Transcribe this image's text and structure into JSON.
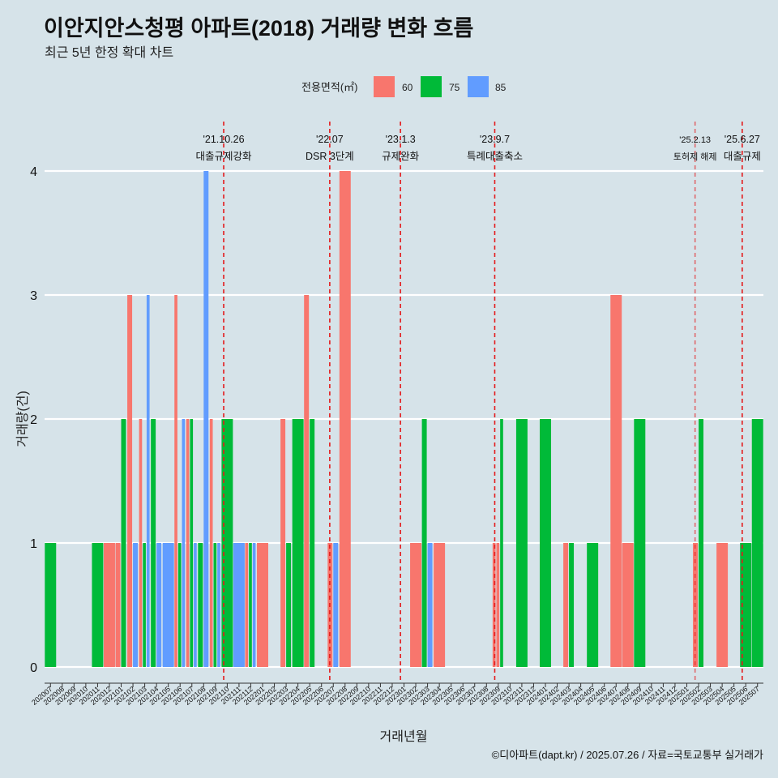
{
  "title": "이안지안스청평 아파트(2018) 거래량 변화 흐름",
  "subtitle": "최근 5년 한정 확대 차트",
  "caption": "©디아파트(dapt.kr) / 2025.07.26 / 자료=국토교통부 실거래가",
  "colors": {
    "60": "#f8766d",
    "75": "#00ba38",
    "85": "#619cff",
    "event": "#e41a1c",
    "grid": "#ffffff",
    "background": "#d6e3e9"
  },
  "chart_data": {
    "type": "bar",
    "xlabel": "거래년월",
    "ylabel": "거래량(건)",
    "ylim": [
      0,
      4
    ],
    "yticks": [
      0,
      1,
      2,
      3,
      4
    ],
    "legend": {
      "title": "전용면적(㎡)",
      "position": "top",
      "entries": [
        "60",
        "75",
        "85"
      ]
    },
    "grid": "horizontal",
    "months": [
      "202007",
      "202008",
      "202009",
      "202010",
      "202011",
      "202012",
      "202101",
      "202102",
      "202103",
      "202104",
      "202105",
      "202106",
      "202107",
      "202108",
      "202109",
      "202110",
      "202111",
      "202112",
      "202201",
      "202202",
      "202203",
      "202204",
      "202205",
      "202206",
      "202207",
      "202208",
      "202209",
      "202210",
      "202211",
      "202212",
      "202301",
      "202302",
      "202303",
      "202304",
      "202305",
      "202306",
      "202307",
      "202308",
      "202309",
      "202310",
      "202311",
      "202312",
      "202401",
      "202402",
      "202403",
      "202404",
      "202405",
      "202406",
      "202407",
      "202408",
      "202409",
      "202410",
      "202411",
      "202412",
      "202501",
      "202502",
      "202503",
      "202504",
      "202505",
      "202506",
      "202507"
    ],
    "bars": [
      {
        "month": "202007",
        "area": "75",
        "count": 1,
        "span": 1
      },
      {
        "month": "202011",
        "area": "75",
        "count": 1,
        "span": 1
      },
      {
        "month": "202012",
        "area": "60",
        "count": 1,
        "span": 1
      },
      {
        "month": "202101",
        "area": "60",
        "count": 1,
        "span": 0.45
      },
      {
        "month": "202101",
        "area": "75",
        "count": 2,
        "span": 0.45
      },
      {
        "month": "202102",
        "area": "60",
        "count": 3,
        "span": 0.3
      },
      {
        "month": "202102",
        "area": "85",
        "count": 1,
        "span": 0.3
      },
      {
        "month": "202103",
        "area": "60",
        "count": 2,
        "span": 0.3
      },
      {
        "month": "202103",
        "area": "75",
        "count": 1,
        "span": 0.3
      },
      {
        "month": "202103",
        "area": "85",
        "count": 3,
        "span": 0.3
      },
      {
        "month": "202104",
        "area": "75",
        "count": 2,
        "span": 0.45
      },
      {
        "month": "202104",
        "area": "85",
        "count": 1,
        "span": 0.45
      },
      {
        "month": "202105",
        "area": "85",
        "count": 1,
        "span": 1
      },
      {
        "month": "202106",
        "area": "60",
        "count": 3,
        "span": 0.3
      },
      {
        "month": "202106",
        "area": "75",
        "count": 1,
        "span": 0.3
      },
      {
        "month": "202106",
        "area": "85",
        "count": 2,
        "span": 0.3
      },
      {
        "month": "202107",
        "area": "60",
        "count": 2,
        "span": 0.3
      },
      {
        "month": "202107",
        "area": "75",
        "count": 2,
        "span": 0.3
      },
      {
        "month": "202107",
        "area": "85",
        "count": 1,
        "span": 0.3
      },
      {
        "month": "202108",
        "area": "75",
        "count": 1,
        "span": 0.45
      },
      {
        "month": "202108",
        "area": "85",
        "count": 4,
        "span": 0.45
      },
      {
        "month": "202109",
        "area": "60",
        "count": 2,
        "span": 0.3
      },
      {
        "month": "202109",
        "area": "75",
        "count": 1,
        "span": 0.3
      },
      {
        "month": "202109",
        "area": "85",
        "count": 1,
        "span": 0.3
      },
      {
        "month": "202110",
        "area": "75",
        "count": 2,
        "span": 1
      },
      {
        "month": "202111",
        "area": "85",
        "count": 1,
        "span": 1
      },
      {
        "month": "202112",
        "area": "60",
        "count": 1,
        "span": 0.3
      },
      {
        "month": "202112",
        "area": "75",
        "count": 1,
        "span": 0.3
      },
      {
        "month": "202112",
        "area": "85",
        "count": 1,
        "span": 0.3
      },
      {
        "month": "202201",
        "area": "60",
        "count": 1,
        "span": 1
      },
      {
        "month": "202203",
        "area": "60",
        "count": 2,
        "span": 0.45
      },
      {
        "month": "202203",
        "area": "75",
        "count": 1,
        "span": 0.45
      },
      {
        "month": "202204",
        "area": "75",
        "count": 2,
        "span": 1
      },
      {
        "month": "202205",
        "area": "60",
        "count": 3,
        "span": 0.45
      },
      {
        "month": "202205",
        "area": "75",
        "count": 2,
        "span": 0.45
      },
      {
        "month": "202207",
        "area": "60",
        "count": 1,
        "span": 0.45
      },
      {
        "month": "202207",
        "area": "85",
        "count": 1,
        "span": 0.45
      },
      {
        "month": "202208",
        "area": "60",
        "count": 4,
        "span": 1
      },
      {
        "month": "202302",
        "area": "60",
        "count": 1,
        "span": 1
      },
      {
        "month": "202303",
        "area": "75",
        "count": 2,
        "span": 0.45
      },
      {
        "month": "202303",
        "area": "85",
        "count": 1,
        "span": 0.45
      },
      {
        "month": "202304",
        "area": "60",
        "count": 1,
        "span": 1
      },
      {
        "month": "202309",
        "area": "60",
        "count": 1,
        "span": 0.3
      },
      {
        "month": "202309",
        "area": "60",
        "count": 1,
        "span": 0.3
      },
      {
        "month": "202309",
        "area": "75",
        "count": 2,
        "span": 0.3
      },
      {
        "month": "202311",
        "area": "75",
        "count": 2,
        "span": 1
      },
      {
        "month": "202401",
        "area": "75",
        "count": 2,
        "span": 1
      },
      {
        "month": "202403",
        "area": "60",
        "count": 1,
        "span": 0.45
      },
      {
        "month": "202403",
        "area": "75",
        "count": 1,
        "span": 0.45
      },
      {
        "month": "202405",
        "area": "75",
        "count": 1,
        "span": 1
      },
      {
        "month": "202407",
        "area": "60",
        "count": 3,
        "span": 1
      },
      {
        "month": "202408",
        "area": "60",
        "count": 1,
        "span": 1
      },
      {
        "month": "202409",
        "area": "75",
        "count": 2,
        "span": 1
      },
      {
        "month": "202502",
        "area": "60",
        "count": 1,
        "span": 0.45
      },
      {
        "month": "202502",
        "area": "75",
        "count": 2,
        "span": 0.45
      },
      {
        "month": "202504",
        "area": "60",
        "count": 1,
        "span": 1
      },
      {
        "month": "202506",
        "area": "75",
        "count": 1,
        "span": 1
      },
      {
        "month": "202507",
        "area": "75",
        "count": 2,
        "span": 1
      }
    ],
    "events": [
      {
        "date": "'21.10.26",
        "label": "대출규제강화",
        "pos": 15.2,
        "opacity": 1
      },
      {
        "date": "'22.07",
        "label": "DSR 3단계",
        "pos": 24.2,
        "opacity": 1
      },
      {
        "date": "'23.1.3",
        "label": "규제완화",
        "pos": 30.2,
        "opacity": 1
      },
      {
        "date": "'23.9.7",
        "label": "특례대출축소",
        "pos": 38.2,
        "opacity": 1
      },
      {
        "date": "'25.2.13",
        "label": "토허제 해제",
        "pos": 55.2,
        "opacity": 0.6,
        "small": true
      },
      {
        "date": "'25.6.27",
        "label": "대출규제",
        "pos": 59.2,
        "opacity": 1
      }
    ]
  }
}
